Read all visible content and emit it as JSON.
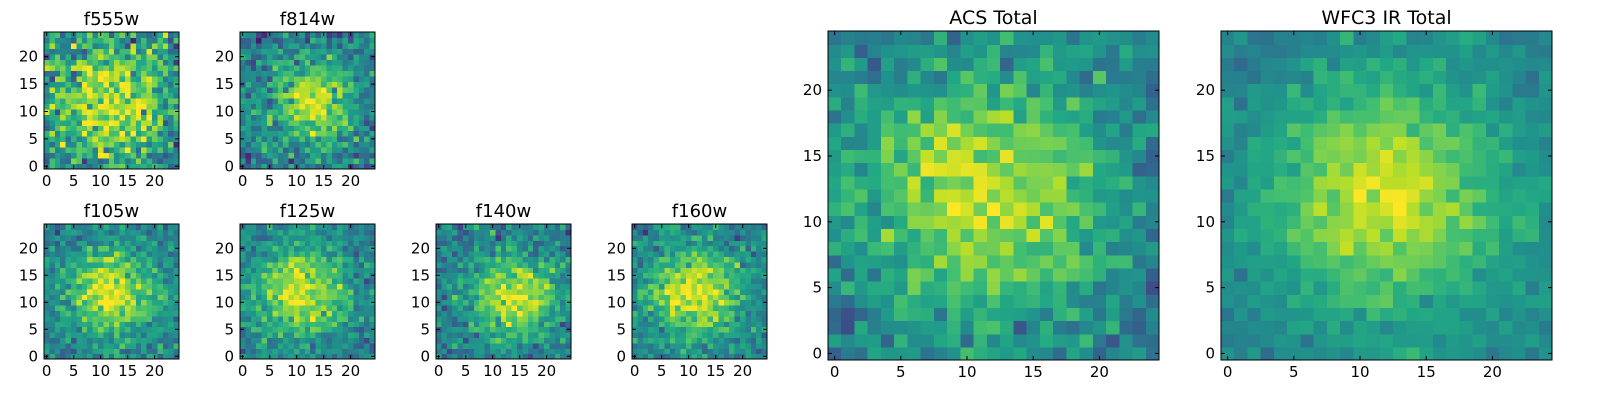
{
  "chart_data": [
    {
      "type": "heatmap",
      "title": "f555w",
      "x_ticks": [
        0,
        5,
        10,
        15,
        20
      ],
      "y_ticks": [
        0,
        5,
        10,
        15,
        20
      ],
      "xlim": [
        -0.5,
        24.5
      ],
      "ylim": [
        -0.5,
        24.5
      ],
      "grid": false,
      "legend": false,
      "colormap": "viridis",
      "peak": [
        12,
        12
      ],
      "spread": 8,
      "noise": 0.75,
      "seed": 11
    },
    {
      "type": "heatmap",
      "title": "f814w",
      "x_ticks": [
        0,
        5,
        10,
        15,
        20
      ],
      "y_ticks": [
        0,
        5,
        10,
        15,
        20
      ],
      "xlim": [
        -0.5,
        24.5
      ],
      "ylim": [
        -0.5,
        24.5
      ],
      "grid": false,
      "legend": false,
      "colormap": "viridis",
      "peak": [
        13,
        12
      ],
      "spread": 5,
      "noise": 0.55,
      "seed": 23
    },
    {
      "type": "heatmap",
      "title": "f105w",
      "x_ticks": [
        0,
        5,
        10,
        15,
        20
      ],
      "y_ticks": [
        0,
        5,
        10,
        15,
        20
      ],
      "xlim": [
        -0.5,
        24.5
      ],
      "ylim": [
        -0.5,
        24.5
      ],
      "grid": false,
      "legend": false,
      "colormap": "viridis",
      "peak": [
        12,
        12
      ],
      "spread": 6,
      "noise": 0.45,
      "seed": 37
    },
    {
      "type": "heatmap",
      "title": "f125w",
      "x_ticks": [
        0,
        5,
        10,
        15,
        20
      ],
      "y_ticks": [
        0,
        5,
        10,
        15,
        20
      ],
      "xlim": [
        -0.5,
        24.5
      ],
      "ylim": [
        -0.5,
        24.5
      ],
      "grid": false,
      "legend": false,
      "colormap": "viridis",
      "peak": [
        11,
        12
      ],
      "spread": 6,
      "noise": 0.45,
      "seed": 41
    },
    {
      "type": "heatmap",
      "title": "f140w",
      "x_ticks": [
        0,
        5,
        10,
        15,
        20
      ],
      "y_ticks": [
        0,
        5,
        10,
        15,
        20
      ],
      "xlim": [
        -0.5,
        24.5
      ],
      "ylim": [
        -0.5,
        24.5
      ],
      "grid": false,
      "legend": false,
      "colormap": "viridis",
      "peak": [
        14,
        11
      ],
      "spread": 5.5,
      "noise": 0.5,
      "seed": 53
    },
    {
      "type": "heatmap",
      "title": "f160w",
      "x_ticks": [
        0,
        5,
        10,
        15,
        20
      ],
      "y_ticks": [
        0,
        5,
        10,
        15,
        20
      ],
      "xlim": [
        -0.5,
        24.5
      ],
      "ylim": [
        -0.5,
        24.5
      ],
      "grid": false,
      "legend": false,
      "colormap": "viridis",
      "peak": [
        11,
        12
      ],
      "spread": 6,
      "noise": 0.42,
      "seed": 67
    },
    {
      "type": "heatmap",
      "title": "ACS Total",
      "x_ticks": [
        0,
        5,
        10,
        15,
        20
      ],
      "y_ticks": [
        0,
        5,
        10,
        15,
        20
      ],
      "xlim": [
        -0.5,
        24.5
      ],
      "ylim": [
        -0.5,
        24.5
      ],
      "grid": false,
      "legend": false,
      "colormap": "viridis",
      "peak": [
        11,
        12
      ],
      "spread": 6.5,
      "noise": 0.42,
      "seed": 79
    },
    {
      "type": "heatmap",
      "title": "WFC3 IR Total",
      "x_ticks": [
        0,
        5,
        10,
        15,
        20
      ],
      "y_ticks": [
        0,
        5,
        10,
        15,
        20
      ],
      "xlim": [
        -0.5,
        24.5
      ],
      "ylim": [
        -0.5,
        24.5
      ],
      "grid": false,
      "legend": false,
      "colormap": "viridis",
      "peak": [
        12,
        12
      ],
      "spread": 6.5,
      "noise": 0.25,
      "seed": 97
    }
  ]
}
